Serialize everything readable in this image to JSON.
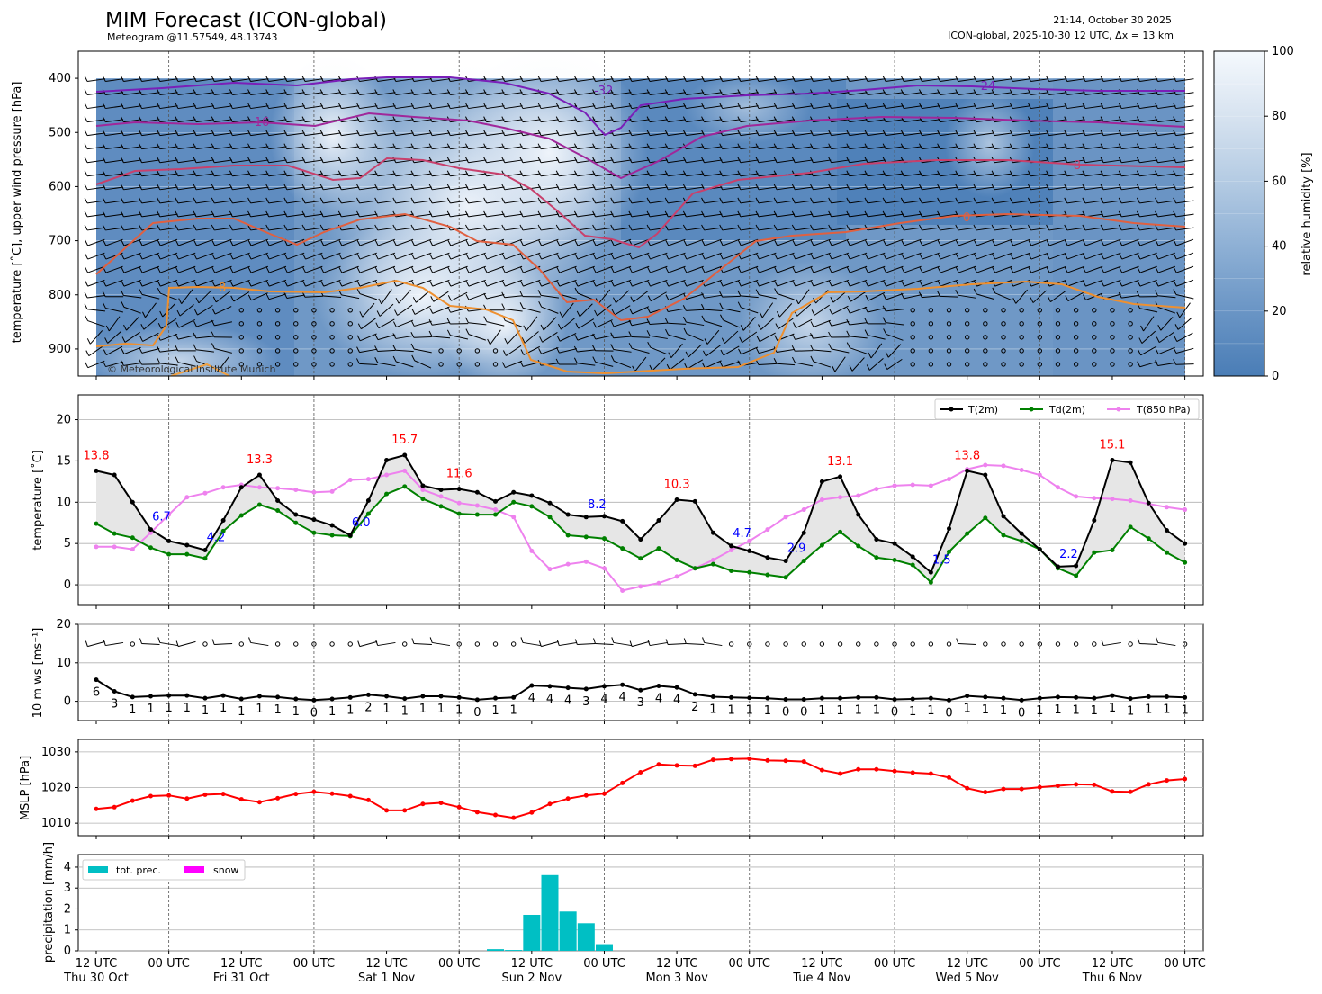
{
  "header": {
    "title": "MIM Forecast (ICON-global)",
    "subtitle": "Meteogram @11.57549, 48.13743",
    "timestamp": "21:14, October 30 2025",
    "model_info": "ICON-global, 2025-10-30 12 UTC, Δx = 13 km",
    "copyright": "© Meteorological Institute Munich"
  },
  "colors": {
    "t2m": "#000000",
    "td2m": "#008000",
    "t850": "#ee82ee",
    "mslp": "#ff0000",
    "precip": "#00bfc4",
    "snow": "#ff00ff",
    "max_label": "#ff0000",
    "min_label": "#0000ff"
  },
  "time_axis": {
    "tick_labels": [
      "12 UTC",
      "00 UTC",
      "12 UTC",
      "00 UTC",
      "12 UTC",
      "00 UTC",
      "12 UTC",
      "00 UTC",
      "12 UTC",
      "00 UTC",
      "12 UTC",
      "00 UTC",
      "12 UTC",
      "00 UTC",
      "12 UTC",
      "00 UTC"
    ],
    "day_labels": [
      "Thu 30 Oct",
      "Fri 31 Oct",
      "Sat 1 Nov",
      "Sun 2 Nov",
      "Mon 3 Nov",
      "Tue 4 Nov",
      "Wed 5 Nov",
      "Thu 6 Nov"
    ],
    "start": "2025-10-30 12 UTC",
    "step_hours": 3,
    "n_steps": 61
  },
  "chart_data": [
    {
      "type": "heatmap",
      "name": "upper-air",
      "ylabel": "temperature [˚C], upper wind pressure [hPa]",
      "ylim": [
        950,
        350
      ],
      "yticks": [
        400,
        500,
        600,
        700,
        800,
        900
      ],
      "colorbar": {
        "label": "relative humidity [%]",
        "ticks": [
          0,
          20,
          40,
          60,
          80,
          100
        ]
      },
      "isotherm_labels": [
        "-32",
        "-24",
        "-16",
        "-8",
        "0",
        "8"
      ]
    },
    {
      "type": "line",
      "name": "surface-temperature",
      "ylabel": "temperature [˚C]",
      "ylim": [
        -2.5,
        23
      ],
      "yticks": [
        0,
        5,
        10,
        15,
        20
      ],
      "legend": [
        "T(2m)",
        "Td(2m)",
        "T(850 hPa)"
      ],
      "legend_position": "top-right",
      "series": [
        {
          "name": "T(2m)",
          "values": [
            13.8,
            13.3,
            10.0,
            6.7,
            5.3,
            4.8,
            4.2,
            7.8,
            11.8,
            13.3,
            10.2,
            8.5,
            7.9,
            7.2,
            6.0,
            10.2,
            15.1,
            15.7,
            12.0,
            11.5,
            11.6,
            11.2,
            10.1,
            11.2,
            10.8,
            9.9,
            8.5,
            8.2,
            8.3,
            7.7,
            5.5,
            7.8,
            10.3,
            10.1,
            6.3,
            4.7,
            4.1,
            3.3,
            2.9,
            6.3,
            12.5,
            13.1,
            8.5,
            5.5,
            5.0,
            3.4,
            1.5,
            6.8,
            13.8,
            13.3,
            8.3,
            6.2,
            4.3,
            2.2,
            2.3,
            7.8,
            15.1,
            14.8,
            9.9,
            6.6,
            5.0
          ]
        },
        {
          "name": "Td(2m)",
          "values": [
            7.4,
            6.2,
            5.7,
            4.5,
            3.7,
            3.7,
            3.2,
            6.5,
            8.4,
            9.7,
            9.0,
            7.5,
            6.3,
            6.0,
            5.9,
            8.6,
            11.0,
            11.9,
            10.4,
            9.5,
            8.6,
            8.5,
            8.5,
            10.0,
            9.5,
            8.2,
            6.0,
            5.8,
            5.6,
            4.4,
            3.2,
            4.4,
            3.0,
            2.0,
            2.5,
            1.7,
            1.5,
            1.2,
            0.9,
            2.9,
            4.8,
            6.4,
            4.7,
            3.3,
            3.0,
            2.4,
            0.3,
            4.0,
            6.2,
            8.1,
            6.0,
            5.3,
            4.3,
            2.0,
            1.1,
            3.9,
            4.2,
            7.0,
            5.6,
            3.9,
            2.7
          ]
        },
        {
          "name": "T(850 hPa)",
          "values": [
            4.6,
            4.6,
            4.3,
            6.3,
            8.5,
            10.6,
            11.1,
            11.8,
            12.1,
            11.8,
            11.7,
            11.5,
            11.2,
            11.3,
            12.7,
            12.8,
            13.3,
            13.8,
            11.5,
            10.7,
            9.9,
            9.6,
            9.1,
            8.2,
            4.1,
            1.9,
            2.5,
            2.8,
            2.0,
            -0.7,
            -0.2,
            0.2,
            1.0,
            2.0,
            3.0,
            4.2,
            5.3,
            6.7,
            8.2,
            9.1,
            10.3,
            10.6,
            10.8,
            11.6,
            12.0,
            12.1,
            12.0,
            12.8,
            14.0,
            14.5,
            14.4,
            13.9,
            13.3,
            11.8,
            10.7,
            10.5,
            10.4,
            10.2,
            9.8,
            9.4,
            9.1
          ]
        }
      ],
      "max_labels": [
        {
          "step": 0,
          "value": "13.8"
        },
        {
          "step": 9,
          "value": "13.3"
        },
        {
          "step": 17,
          "value": "15.7"
        },
        {
          "step": 20,
          "value": "11.6"
        },
        {
          "step": 32,
          "value": "10.3"
        },
        {
          "step": 41,
          "value": "13.1"
        },
        {
          "step": 48,
          "value": "13.8"
        },
        {
          "step": 56,
          "value": "15.1"
        }
      ],
      "min_labels": [
        {
          "step": 3,
          "value": "6.7"
        },
        {
          "step": 6,
          "value": "4.2"
        },
        {
          "step": 14,
          "value": "6.0"
        },
        {
          "step": 27,
          "value": "8.2"
        },
        {
          "step": 35,
          "value": "4.7"
        },
        {
          "step": 38,
          "value": "2.9"
        },
        {
          "step": 46,
          "value": "1.5"
        },
        {
          "step": 53,
          "value": "2.2"
        }
      ]
    },
    {
      "type": "line",
      "name": "wind-speed",
      "ylabel": "10 m ws [ms⁻¹]",
      "ylim": [
        -5,
        20
      ],
      "yticks": [
        0,
        10,
        20
      ],
      "series": [
        {
          "name": "10 m ws",
          "values": [
            5.6,
            2.6,
            1.1,
            1.3,
            1.5,
            1.5,
            0.8,
            1.5,
            0.6,
            1.3,
            1.1,
            0.6,
            0.3,
            0.6,
            1.0,
            1.7,
            1.3,
            0.7,
            1.3,
            1.3,
            1.0,
            0.4,
            0.8,
            1.0,
            4.1,
            3.9,
            3.5,
            3.2,
            3.9,
            4.3,
            2.9,
            4.0,
            3.6,
            1.8,
            1.2,
            1.0,
            0.9,
            0.8,
            0.5,
            0.5,
            0.8,
            0.8,
            1.0,
            1.0,
            0.5,
            0.6,
            0.8,
            0.3,
            1.4,
            1.1,
            0.8,
            0.3,
            0.8,
            1.1,
            1.0,
            0.8,
            1.5,
            0.7,
            1.2,
            1.2,
            1.0
          ]
        }
      ],
      "value_labels": [
        "6",
        "3",
        "1",
        "1",
        "1",
        "1",
        "1",
        "1",
        "1",
        "1",
        "1",
        "1",
        "0",
        "1",
        "1",
        "2",
        "1",
        "1",
        "1",
        "1",
        "1",
        "0",
        "1",
        "1",
        "4",
        "4",
        "4",
        "3",
        "4",
        "4",
        "3",
        "4",
        "4",
        "2",
        "1",
        "1",
        "1",
        "1",
        "0",
        "0",
        "1",
        "1",
        "1",
        "1",
        "0",
        "1",
        "1",
        "0",
        "1",
        "1",
        "1",
        "0",
        "1",
        "1",
        "1",
        "1",
        "1",
        "1",
        "1",
        "1",
        "1"
      ]
    },
    {
      "type": "line",
      "name": "mslp",
      "ylabel": "MSLP [hPa]",
      "ylim": [
        1006.5,
        1033.5
      ],
      "yticks": [
        1010,
        1020,
        1030
      ],
      "series": [
        {
          "name": "MSLP",
          "values": [
            1014.0,
            1014.5,
            1016.3,
            1017.6,
            1017.8,
            1016.9,
            1018.0,
            1018.2,
            1016.7,
            1015.9,
            1017.0,
            1018.2,
            1018.8,
            1018.3,
            1017.6,
            1016.5,
            1013.6,
            1013.6,
            1015.4,
            1015.7,
            1014.5,
            1013.1,
            1012.3,
            1011.5,
            1013.0,
            1015.4,
            1016.9,
            1017.8,
            1018.3,
            1021.3,
            1024.3,
            1026.5,
            1026.2,
            1026.1,
            1027.8,
            1028.0,
            1028.1,
            1027.6,
            1027.5,
            1027.3,
            1024.9,
            1023.9,
            1025.1,
            1025.1,
            1024.6,
            1024.2,
            1023.9,
            1022.8,
            1019.8,
            1018.7,
            1019.6,
            1019.6,
            1020.1,
            1020.5,
            1020.9,
            1020.8,
            1018.9,
            1018.8,
            1020.9,
            1022.0,
            1022.4
          ]
        }
      ]
    },
    {
      "type": "bar",
      "name": "precipitation",
      "ylabel": "precipitation [mm/h]",
      "ylim": [
        0,
        4.6
      ],
      "yticks": [
        0,
        1,
        2,
        3,
        4
      ],
      "legend": [
        "tot. prec.",
        "snow"
      ],
      "legend_position": "top-left",
      "series": [
        {
          "name": "tot. prec.",
          "values": [
            0,
            0,
            0,
            0,
            0,
            0,
            0,
            0,
            0,
            0,
            0,
            0,
            0,
            0,
            0,
            0,
            0,
            0,
            0,
            0,
            0,
            0,
            0.08,
            0.04,
            1.72,
            3.62,
            1.88,
            1.32,
            0.32,
            0,
            0,
            0,
            0,
            0,
            0,
            0,
            0,
            0,
            0,
            0,
            0,
            0,
            0,
            0,
            0,
            0,
            0,
            0,
            0,
            0,
            0,
            0,
            0,
            0,
            0,
            0,
            0,
            0,
            0,
            0,
            0
          ]
        },
        {
          "name": "snow",
          "values": []
        }
      ]
    }
  ]
}
